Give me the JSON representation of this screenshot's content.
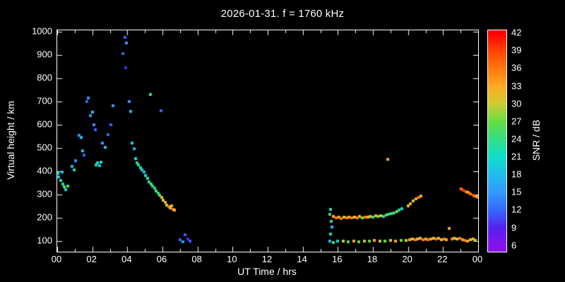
{
  "axes": {
    "xlabel": "UT Time / hrs",
    "ylabel": "Virtual height / km",
    "x_ticks": [
      "00",
      "02",
      "04",
      "06",
      "08",
      "10",
      "12",
      "14",
      "16",
      "18",
      "20",
      "22",
      "00"
    ],
    "y_ticks": [
      1000,
      900,
      800,
      700,
      600,
      500,
      400,
      300,
      200,
      100
    ],
    "x_range_hours": [
      0,
      24
    ],
    "y_range_km": [
      55,
      1005
    ]
  },
  "colorbar": {
    "label": "SNR / dB",
    "ticks": [
      42,
      39,
      36,
      33,
      30,
      27,
      24,
      21,
      18,
      15,
      12,
      9,
      6
    ],
    "range": [
      5,
      42.5
    ],
    "stops": [
      {
        "v": 6,
        "c": "#8811ee"
      },
      {
        "v": 9,
        "c": "#5522ee"
      },
      {
        "v": 12,
        "c": "#3366ff"
      },
      {
        "v": 15,
        "c": "#3399ff"
      },
      {
        "v": 18,
        "c": "#22bbee"
      },
      {
        "v": 21,
        "c": "#11ddcc"
      },
      {
        "v": 24,
        "c": "#33dd88"
      },
      {
        "v": 27,
        "c": "#66dd44"
      },
      {
        "v": 30,
        "c": "#cccc33"
      },
      {
        "v": 33,
        "c": "#ffaa22"
      },
      {
        "v": 36,
        "c": "#ff7711"
      },
      {
        "v": 39,
        "c": "#ff4400"
      },
      {
        "v": 42,
        "c": "#ff0000"
      }
    ]
  },
  "chart_data": {
    "type": "scatter",
    "title": "2026-01-31. f = 1760 kHz",
    "xlabel": "UT Time / hrs",
    "ylabel": "Virtual height / km",
    "color_label": "SNR / dB",
    "xlim": [
      0,
      24
    ],
    "ylim": [
      100,
      1000
    ],
    "color_range": [
      6,
      42
    ],
    "grid": false,
    "points_format": "[ut_hours, virtual_height_km, snr_db]",
    "points": [
      [
        0.05,
        390,
        21
      ],
      [
        0.1,
        375,
        18
      ],
      [
        0.2,
        360,
        24
      ],
      [
        0.3,
        398,
        18
      ],
      [
        0.32,
        345,
        21
      ],
      [
        0.4,
        332,
        27
      ],
      [
        0.5,
        322,
        21
      ],
      [
        0.6,
        335,
        24
      ],
      [
        0.85,
        420,
        18
      ],
      [
        0.95,
        405,
        21
      ],
      [
        1.05,
        445,
        15
      ],
      [
        1.25,
        555,
        15
      ],
      [
        1.35,
        545,
        18
      ],
      [
        1.45,
        487,
        18
      ],
      [
        1.55,
        470,
        12
      ],
      [
        1.7,
        700,
        12
      ],
      [
        1.78,
        715,
        15
      ],
      [
        1.88,
        640,
        15
      ],
      [
        2.0,
        655,
        18
      ],
      [
        2.08,
        600,
        15
      ],
      [
        2.18,
        578,
        12
      ],
      [
        2.2,
        428,
        24
      ],
      [
        2.3,
        436,
        21
      ],
      [
        2.42,
        425,
        18
      ],
      [
        2.5,
        440,
        21
      ],
      [
        2.58,
        520,
        15
      ],
      [
        2.72,
        502,
        18
      ],
      [
        2.9,
        558,
        12
      ],
      [
        3.05,
        600,
        12
      ],
      [
        3.2,
        682,
        15
      ],
      [
        3.75,
        905,
        12
      ],
      [
        3.85,
        975,
        12
      ],
      [
        3.95,
        952,
        15
      ],
      [
        3.9,
        845,
        9
      ],
      [
        4.1,
        700,
        15
      ],
      [
        4.18,
        658,
        18
      ],
      [
        4.28,
        520,
        21
      ],
      [
        4.38,
        498,
        18
      ],
      [
        4.45,
        455,
        21
      ],
      [
        4.55,
        436,
        24
      ],
      [
        4.65,
        426,
        21
      ],
      [
        4.75,
        416,
        24
      ],
      [
        4.85,
        407,
        21
      ],
      [
        4.95,
        396,
        18
      ],
      [
        5.05,
        382,
        21
      ],
      [
        5.15,
        371,
        24
      ],
      [
        5.25,
        356,
        21
      ],
      [
        5.3,
        730,
        24
      ],
      [
        5.35,
        346,
        27
      ],
      [
        5.45,
        336,
        24
      ],
      [
        5.55,
        326,
        21
      ],
      [
        5.65,
        316,
        27
      ],
      [
        5.75,
        306,
        24
      ],
      [
        5.85,
        296,
        27
      ],
      [
        5.9,
        660,
        12
      ],
      [
        5.95,
        287,
        30
      ],
      [
        6.05,
        276,
        30
      ],
      [
        6.15,
        266,
        33
      ],
      [
        6.25,
        256,
        30
      ],
      [
        6.35,
        249,
        36
      ],
      [
        6.45,
        243,
        33
      ],
      [
        6.52,
        252,
        30
      ],
      [
        6.6,
        238,
        36
      ],
      [
        6.7,
        233,
        33
      ],
      [
        7.0,
        106,
        12
      ],
      [
        7.15,
        98,
        15
      ],
      [
        7.3,
        128,
        12
      ],
      [
        7.45,
        108,
        9
      ],
      [
        7.58,
        100,
        12
      ],
      [
        15.55,
        100,
        18
      ],
      [
        15.6,
        130,
        21
      ],
      [
        15.65,
        162,
        18
      ],
      [
        15.75,
        95,
        24
      ],
      [
        16.0,
        99,
        21
      ],
      [
        16.3,
        101,
        30
      ],
      [
        16.6,
        97,
        24
      ],
      [
        16.9,
        100,
        33
      ],
      [
        17.2,
        98,
        27
      ],
      [
        17.5,
        101,
        30
      ],
      [
        17.8,
        99,
        27
      ],
      [
        18.1,
        102,
        33
      ],
      [
        18.4,
        99,
        30
      ],
      [
        18.7,
        101,
        27
      ],
      [
        19.0,
        103,
        30
      ],
      [
        19.3,
        100,
        33
      ],
      [
        19.6,
        102,
        27
      ],
      [
        19.9,
        104,
        30
      ],
      [
        20.1,
        106,
        33
      ],
      [
        20.25,
        109,
        30
      ],
      [
        20.4,
        105,
        36
      ],
      [
        20.55,
        108,
        33
      ],
      [
        20.7,
        111,
        30
      ],
      [
        20.85,
        107,
        36
      ],
      [
        21.0,
        110,
        33
      ],
      [
        21.15,
        106,
        36
      ],
      [
        21.3,
        109,
        33
      ],
      [
        21.45,
        112,
        30
      ],
      [
        21.6,
        108,
        36
      ],
      [
        21.75,
        111,
        33
      ],
      [
        21.9,
        107,
        30
      ],
      [
        22.05,
        110,
        36
      ],
      [
        22.2,
        106,
        33
      ],
      [
        22.35,
        155,
        33
      ],
      [
        22.5,
        109,
        36
      ],
      [
        22.65,
        112,
        33
      ],
      [
        22.8,
        108,
        30
      ],
      [
        22.95,
        111,
        36
      ],
      [
        23.1,
        107,
        33
      ],
      [
        23.25,
        104,
        36
      ],
      [
        23.4,
        101,
        33
      ],
      [
        23.55,
        105,
        30
      ],
      [
        23.7,
        108,
        33
      ],
      [
        23.85,
        104,
        30
      ],
      [
        15.55,
        215,
        24
      ],
      [
        15.6,
        237,
        21
      ],
      [
        15.62,
        185,
        24
      ],
      [
        15.75,
        206,
        33
      ],
      [
        15.9,
        200,
        36
      ],
      [
        16.05,
        203,
        33
      ],
      [
        16.2,
        198,
        36
      ],
      [
        16.35,
        202,
        30
      ],
      [
        16.5,
        200,
        36
      ],
      [
        16.65,
        204,
        33
      ],
      [
        16.8,
        199,
        36
      ],
      [
        16.95,
        203,
        30
      ],
      [
        17.1,
        201,
        36
      ],
      [
        17.25,
        205,
        33
      ],
      [
        17.4,
        200,
        27
      ],
      [
        17.55,
        204,
        36
      ],
      [
        17.7,
        202,
        33
      ],
      [
        17.85,
        206,
        30
      ],
      [
        18.0,
        203,
        24
      ],
      [
        18.15,
        208,
        33
      ],
      [
        18.3,
        205,
        27
      ],
      [
        18.45,
        210,
        30
      ],
      [
        18.6,
        207,
        24
      ],
      [
        18.75,
        212,
        27
      ],
      [
        18.85,
        450,
        33
      ],
      [
        18.9,
        215,
        21
      ],
      [
        19.05,
        218,
        27
      ],
      [
        19.2,
        222,
        24
      ],
      [
        19.35,
        228,
        27
      ],
      [
        19.5,
        233,
        24
      ],
      [
        19.65,
        240,
        21
      ],
      [
        20.0,
        252,
        30
      ],
      [
        20.15,
        262,
        33
      ],
      [
        20.3,
        272,
        30
      ],
      [
        20.45,
        281,
        33
      ],
      [
        20.6,
        288,
        36
      ],
      [
        20.75,
        295,
        33
      ],
      [
        23.05,
        325,
        36
      ],
      [
        23.15,
        318,
        39
      ],
      [
        23.3,
        312,
        36
      ],
      [
        23.45,
        308,
        33
      ],
      [
        23.55,
        303,
        36
      ],
      [
        23.7,
        298,
        39
      ],
      [
        23.8,
        294,
        36
      ],
      [
        23.92,
        291,
        33
      ],
      [
        23.98,
        288,
        36
      ]
    ]
  }
}
